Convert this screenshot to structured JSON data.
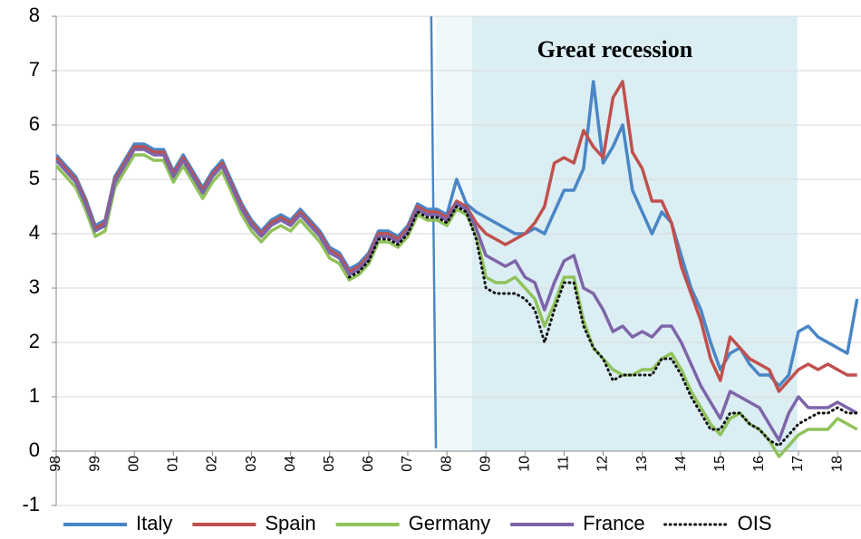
{
  "chart_data": {
    "type": "line",
    "annotations": [
      {
        "text": "Great recession",
        "x": 2012.3,
        "y": 7.35
      }
    ],
    "shading": [
      {
        "x": [
          2007.72,
          2008.65
        ],
        "color": "#eef8fb"
      },
      {
        "x": [
          2008.65,
          2016.97
        ],
        "color": "#daeef3"
      }
    ],
    "vline": {
      "x": [
        2007.6,
        2007.72
      ],
      "color": "#4a86c5"
    },
    "x": [
      1998,
      1998.25,
      1998.5,
      1998.75,
      1999,
      1999.25,
      1999.5,
      1999.75,
      2000,
      2000.25,
      2000.5,
      2000.75,
      2001,
      2001.25,
      2001.5,
      2001.75,
      2002,
      2002.25,
      2002.5,
      2002.75,
      2003,
      2003.25,
      2003.5,
      2003.75,
      2004,
      2004.25,
      2004.5,
      2004.75,
      2005,
      2005.25,
      2005.5,
      2005.75,
      2006,
      2006.25,
      2006.5,
      2006.75,
      2007,
      2007.25,
      2007.5,
      2007.75,
      2008,
      2008.25,
      2008.5,
      2008.75,
      2009,
      2009.25,
      2009.5,
      2009.75,
      2010,
      2010.25,
      2010.5,
      2010.75,
      2011,
      2011.25,
      2011.5,
      2011.75,
      2012,
      2012.25,
      2012.5,
      2012.75,
      2013,
      2013.25,
      2013.5,
      2013.75,
      2014,
      2014.25,
      2014.5,
      2014.75,
      2015,
      2015.25,
      2015.5,
      2015.75,
      2016,
      2016.25,
      2016.5,
      2016.75,
      2017,
      2017.25,
      2017.5,
      2017.75,
      2018,
      2018.25,
      2018.5
    ],
    "series": [
      {
        "name": "Italy",
        "color": "#4a86c5",
        "dash": false,
        "values": [
          5.45,
          5.25,
          5.05,
          4.65,
          4.15,
          4.25,
          5.05,
          5.35,
          5.65,
          5.65,
          5.55,
          5.55,
          5.15,
          5.45,
          5.15,
          4.85,
          5.15,
          5.35,
          4.95,
          4.55,
          4.25,
          4.05,
          4.25,
          4.35,
          4.25,
          4.45,
          4.25,
          4.05,
          3.75,
          3.65,
          3.35,
          3.45,
          3.65,
          4.05,
          4.05,
          3.95,
          4.15,
          4.55,
          4.45,
          4.45,
          4.35,
          5.0,
          4.55,
          4.4,
          4.3,
          4.2,
          4.1,
          4.0,
          4.0,
          4.1,
          4.0,
          4.4,
          4.8,
          4.8,
          5.2,
          6.8,
          5.3,
          5.6,
          6.0,
          4.8,
          4.4,
          4.0,
          4.4,
          4.2,
          3.6,
          3.0,
          2.6,
          2.0,
          1.5,
          1.8,
          1.9,
          1.6,
          1.4,
          1.4,
          1.2,
          1.4,
          2.2,
          2.3,
          2.1,
          2.0,
          1.9,
          1.8,
          2.8
        ]
      },
      {
        "name": "Spain",
        "color": "#c0504d",
        "dash": false,
        "values": [
          5.4,
          5.2,
          5.0,
          4.6,
          4.1,
          4.2,
          5.0,
          5.3,
          5.6,
          5.6,
          5.5,
          5.5,
          5.1,
          5.4,
          5.1,
          4.8,
          5.1,
          5.3,
          4.9,
          4.5,
          4.2,
          4.0,
          4.2,
          4.3,
          4.2,
          4.4,
          4.2,
          4.0,
          3.7,
          3.6,
          3.3,
          3.4,
          3.6,
          4.0,
          4.0,
          3.9,
          4.1,
          4.5,
          4.4,
          4.4,
          4.3,
          4.6,
          4.5,
          4.2,
          4.0,
          3.9,
          3.8,
          3.9,
          4.0,
          4.2,
          4.5,
          5.3,
          5.4,
          5.3,
          5.9,
          5.6,
          5.4,
          6.5,
          6.8,
          5.5,
          5.2,
          4.6,
          4.6,
          4.2,
          3.4,
          2.9,
          2.4,
          1.7,
          1.3,
          2.1,
          1.9,
          1.7,
          1.6,
          1.5,
          1.1,
          1.3,
          1.5,
          1.6,
          1.5,
          1.6,
          1.5,
          1.4,
          1.4
        ]
      },
      {
        "name": "Germany",
        "color": "#8fc25a",
        "dash": false,
        "values": [
          5.25,
          5.05,
          4.85,
          4.45,
          3.95,
          4.05,
          4.85,
          5.15,
          5.45,
          5.45,
          5.35,
          5.35,
          4.95,
          5.25,
          4.95,
          4.65,
          4.95,
          5.15,
          4.75,
          4.35,
          4.05,
          3.85,
          4.05,
          4.15,
          4.05,
          4.25,
          4.05,
          3.85,
          3.55,
          3.45,
          3.15,
          3.25,
          3.45,
          3.85,
          3.85,
          3.75,
          3.95,
          4.35,
          4.25,
          4.25,
          4.15,
          4.45,
          4.35,
          4.0,
          3.2,
          3.1,
          3.1,
          3.2,
          3.0,
          2.8,
          2.3,
          2.7,
          3.2,
          3.2,
          2.4,
          1.9,
          1.7,
          1.5,
          1.4,
          1.4,
          1.5,
          1.5,
          1.7,
          1.8,
          1.5,
          1.1,
          0.8,
          0.5,
          0.3,
          0.6,
          0.7,
          0.5,
          0.4,
          0.2,
          -0.1,
          0.1,
          0.3,
          0.4,
          0.4,
          0.4,
          0.6,
          0.5,
          0.4
        ]
      },
      {
        "name": "France",
        "color": "#7e64a8",
        "dash": false,
        "values": [
          5.35,
          5.15,
          4.95,
          4.55,
          4.05,
          4.15,
          4.95,
          5.25,
          5.55,
          5.55,
          5.45,
          5.45,
          5.05,
          5.35,
          5.05,
          4.75,
          5.05,
          5.25,
          4.85,
          4.45,
          4.15,
          3.95,
          4.15,
          4.25,
          4.15,
          4.35,
          4.15,
          3.95,
          3.65,
          3.55,
          3.25,
          3.35,
          3.55,
          3.95,
          3.95,
          3.85,
          4.05,
          4.45,
          4.35,
          4.35,
          4.25,
          4.55,
          4.45,
          4.1,
          3.6,
          3.5,
          3.4,
          3.5,
          3.2,
          3.1,
          2.6,
          3.1,
          3.5,
          3.6,
          3.0,
          2.9,
          2.6,
          2.2,
          2.3,
          2.1,
          2.2,
          2.1,
          2.3,
          2.3,
          2.0,
          1.6,
          1.2,
          0.9,
          0.6,
          1.1,
          1.0,
          0.9,
          0.8,
          0.5,
          0.2,
          0.7,
          1.0,
          0.8,
          0.8,
          0.8,
          0.9,
          0.8,
          0.7
        ]
      },
      {
        "name": "OIS",
        "color": "#111111",
        "dash": true,
        "values": [
          null,
          null,
          null,
          null,
          null,
          null,
          null,
          null,
          null,
          null,
          null,
          null,
          null,
          null,
          null,
          null,
          null,
          null,
          null,
          null,
          null,
          null,
          null,
          null,
          null,
          null,
          null,
          null,
          null,
          null,
          3.2,
          3.3,
          3.5,
          3.9,
          3.9,
          3.8,
          4.0,
          4.4,
          4.3,
          4.3,
          4.2,
          4.5,
          4.4,
          3.9,
          3.0,
          2.9,
          2.9,
          2.9,
          2.8,
          2.6,
          2.0,
          2.6,
          3.1,
          3.1,
          2.3,
          1.9,
          1.7,
          1.3,
          1.4,
          1.4,
          1.4,
          1.4,
          1.7,
          1.7,
          1.4,
          1.0,
          0.7,
          0.4,
          0.4,
          0.7,
          0.7,
          0.5,
          0.4,
          0.2,
          0.1,
          0.3,
          0.5,
          0.6,
          0.7,
          0.7,
          0.8,
          0.7,
          0.7
        ]
      }
    ],
    "xlim": [
      1998,
      2018.6
    ],
    "xticks": [
      {
        "value": 1998,
        "label": "98"
      },
      {
        "value": 1999,
        "label": "99"
      },
      {
        "value": 2000,
        "label": "00"
      },
      {
        "value": 2001,
        "label": "01"
      },
      {
        "value": 2002,
        "label": "02"
      },
      {
        "value": 2003,
        "label": "03"
      },
      {
        "value": 2004,
        "label": "04"
      },
      {
        "value": 2005,
        "label": "05"
      },
      {
        "value": 2006,
        "label": "06"
      },
      {
        "value": 2007,
        "label": "07"
      },
      {
        "value": 2008,
        "label": "08"
      },
      {
        "value": 2009,
        "label": "09"
      },
      {
        "value": 2010,
        "label": "10"
      },
      {
        "value": 2011,
        "label": "11"
      },
      {
        "value": 2012,
        "label": "12"
      },
      {
        "value": 2013,
        "label": "13"
      },
      {
        "value": 2014,
        "label": "14"
      },
      {
        "value": 2015,
        "label": "15"
      },
      {
        "value": 2016,
        "label": "16"
      },
      {
        "value": 2017,
        "label": "17"
      },
      {
        "value": 2018,
        "label": "18"
      }
    ],
    "ylim": [
      -1,
      8
    ],
    "yticks": [
      -1,
      0,
      1,
      2,
      3,
      4,
      5,
      6,
      7,
      8
    ],
    "grid": true,
    "legend": "bottom"
  }
}
